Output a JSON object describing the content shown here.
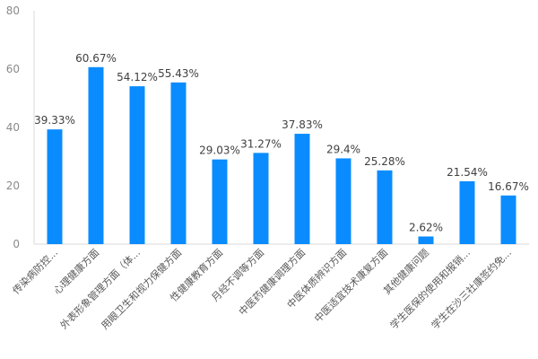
{
  "chart_data": {
    "type": "bar",
    "title": "",
    "xlabel": "",
    "ylabel": "",
    "ylim": [
      0,
      80
    ],
    "yticks": [
      0,
      20,
      40,
      60,
      80
    ],
    "grid": false,
    "bar_color": "#0a8cff",
    "categories": [
      "传染病防控...",
      "心理健康方面",
      "外表形象管理方面（体...",
      "用眼卫生和视力保健方面",
      "性健康教育方面",
      "月经不调等方面",
      "中医药健康调理方面",
      "中医体质辨识方面",
      "中医适宜技术康复方面",
      "其他健康问题",
      "学生医保的使用和报销...",
      "学生在沙三社康签约免..."
    ],
    "values": [
      39.33,
      60.67,
      54.12,
      55.43,
      29.03,
      31.27,
      37.83,
      29.4,
      25.28,
      2.62,
      21.54,
      16.67
    ],
    "data_labels": [
      "39.33%",
      "60.67%",
      "54.12%",
      "55.43%",
      "29.03%",
      "31.27%",
      "37.83%",
      "29.4%",
      "25.28%",
      "2.62%",
      "21.54%",
      "16.67%"
    ]
  }
}
